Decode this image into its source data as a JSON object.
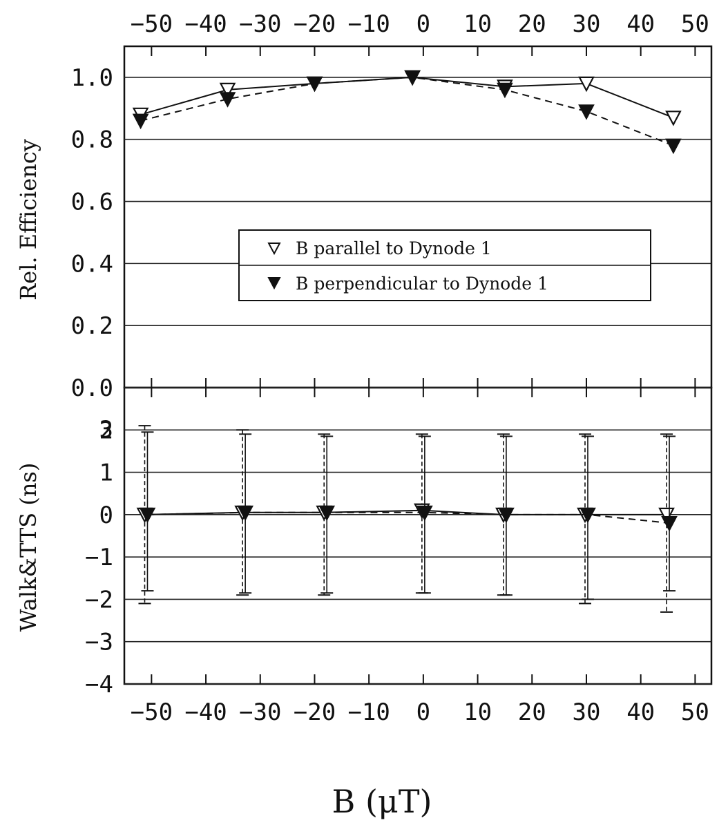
{
  "chart_data": [
    {
      "type": "line",
      "xlabel": "B (μT)",
      "ylabel": "Rel. Efficiency",
      "xlim": [
        -55,
        53
      ],
      "ylim": [
        0.0,
        1.1
      ],
      "x_ticks": [
        "-50",
        "-40",
        "-30",
        "-20",
        "-10",
        "0",
        "10",
        "20",
        "30",
        "40",
        "50"
      ],
      "y_ticks": [
        "0.0",
        "0.2",
        "0.4",
        "0.6",
        "0.8",
        "1.0"
      ],
      "grid": "horizontal",
      "legend_position": "center",
      "series": [
        {
          "name": "B parallel to Dynode 1",
          "marker": "open-triangle-down",
          "line": "solid",
          "x": [
            -52,
            -36,
            -20,
            -2,
            15,
            30,
            46
          ],
          "y": [
            0.88,
            0.96,
            0.98,
            1.0,
            0.97,
            0.98,
            0.87
          ]
        },
        {
          "name": "B perpendicular to Dynode 1",
          "marker": "filled-triangle-down",
          "line": "dashed",
          "x": [
            -52,
            -36,
            -20,
            -2,
            15,
            30,
            46
          ],
          "y": [
            0.86,
            0.93,
            0.98,
            1.0,
            0.96,
            0.89,
            0.78
          ]
        }
      ]
    },
    {
      "type": "scatter",
      "xlabel": "B (μT)",
      "ylabel": "Walk&TTS (ns)",
      "xlim": [
        -55,
        53
      ],
      "ylim": [
        -4,
        3
      ],
      "x_ticks": [
        "-50",
        "-40",
        "-30",
        "-20",
        "-10",
        "0",
        "10",
        "20",
        "30",
        "40",
        "50"
      ],
      "y_ticks": [
        "-4",
        "-3",
        "-2",
        "-1",
        "0",
        "1",
        "2",
        "3"
      ],
      "grid": "horizontal",
      "series": [
        {
          "name": "B parallel to Dynode 1",
          "marker": "open-triangle-down",
          "line": "solid",
          "x": [
            -51,
            -33,
            -18,
            0,
            15,
            30,
            45
          ],
          "y": [
            0.0,
            0.05,
            0.05,
            0.1,
            0.0,
            0.0,
            0.0
          ],
          "err_low": [
            -2.1,
            -1.9,
            -1.9,
            -1.85,
            -1.9,
            -2.1,
            -2.3
          ],
          "err_high": [
            2.1,
            2.0,
            1.9,
            1.9,
            1.9,
            1.9,
            1.9
          ]
        },
        {
          "name": "B perpendicular to Dynode 1",
          "marker": "filled-triangle-down",
          "line": "dashed",
          "x": [
            -51,
            -33,
            -18,
            0,
            15,
            30,
            45
          ],
          "y": [
            0.0,
            0.05,
            0.05,
            0.05,
            0.0,
            0.0,
            -0.2
          ],
          "err_low": [
            -1.8,
            -1.85,
            -1.85,
            -1.85,
            -1.9,
            -2.0,
            -1.8
          ],
          "err_high": [
            1.95,
            1.9,
            1.85,
            1.85,
            1.85,
            1.85,
            1.85
          ]
        }
      ]
    }
  ]
}
